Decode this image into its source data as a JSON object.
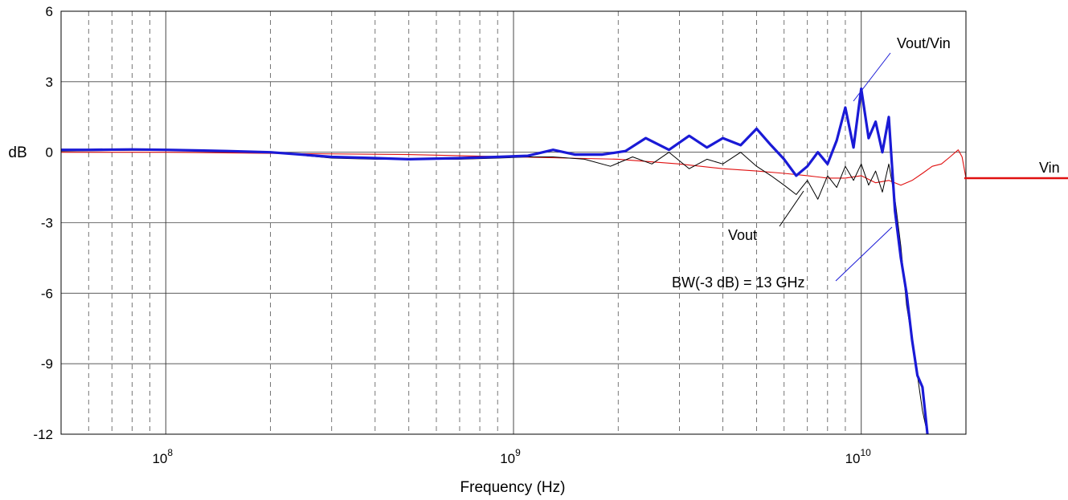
{
  "chart_data": {
    "type": "line",
    "title": "",
    "xlabel": "Frequency (Hz)",
    "ylabel": "dB",
    "xscale": "log",
    "xlim": [
      50000000,
      20000000000
    ],
    "ylim": [
      -12,
      6
    ],
    "grid": true,
    "yticks": [
      6,
      3,
      0,
      -3,
      -6,
      -9,
      -12
    ],
    "ytick_labels": [
      "6",
      "3",
      "0",
      "-3",
      "-6",
      "-9",
      "-12"
    ],
    "xticks": [
      {
        "value": 100000000,
        "base": "10",
        "exp": "8"
      },
      {
        "value": 1000000000,
        "base": "10",
        "exp": "9"
      },
      {
        "value": 10000000000,
        "base": "10",
        "exp": "10"
      }
    ],
    "annotations": {
      "vout_vin": "Vout/Vin",
      "vout": "Vout",
      "vin": "Vin",
      "bw": "BW(-3 dB) = 13 GHz"
    },
    "colors": {
      "vout_vin": "#1a1ad6",
      "vout": "#000000",
      "vin": "#e01010"
    },
    "series": [
      {
        "name": "Vout/Vin",
        "x": [
          50000000.0,
          60000000.0,
          80000000.0,
          100000000.0,
          150000000.0,
          200000000.0,
          300000000.0,
          400000000.0,
          500000000.0,
          700000000.0,
          900000000.0,
          1100000000.0,
          1300000000.0,
          1500000000.0,
          1800000000.0,
          2100000000.0,
          2400000000.0,
          2800000000.0,
          3200000000.0,
          3600000000.0,
          4000000000.0,
          4500000000.0,
          5000000000.0,
          5500000000.0,
          6000000000.0,
          6500000000.0,
          7000000000.0,
          7500000000.0,
          8000000000.0,
          8500000000.0,
          9000000000.0,
          9500000000.0,
          10000000000.0,
          10500000000.0,
          11000000000.0,
          11500000000.0,
          12000000000.0,
          12500000000.0,
          13000000000.0,
          13500000000.0,
          14000000000.0,
          14500000000.0,
          15000000000.0,
          15500000000.0
        ],
        "y": [
          0.1,
          0.1,
          0.12,
          0.1,
          0.05,
          0.0,
          -0.2,
          -0.25,
          -0.3,
          -0.25,
          -0.2,
          -0.15,
          0.1,
          -0.1,
          -0.1,
          0.05,
          0.6,
          0.1,
          0.7,
          0.2,
          0.6,
          0.3,
          1.0,
          0.3,
          -0.3,
          -1.0,
          -0.6,
          0.0,
          -0.5,
          0.5,
          1.9,
          0.2,
          2.7,
          0.6,
          1.3,
          0.0,
          1.5,
          -2.5,
          -4.5,
          -6.0,
          -8.0,
          -9.5,
          -10.0,
          -12.0
        ]
      },
      {
        "name": "Vout",
        "x": [
          50000000.0,
          80000000.0,
          100000000.0,
          150000000.0,
          200000000.0,
          300000000.0,
          400000000.0,
          500000000.0,
          700000000.0,
          900000000.0,
          1100000000.0,
          1300000000.0,
          1600000000.0,
          1900000000.0,
          2200000000.0,
          2500000000.0,
          2800000000.0,
          3200000000.0,
          3600000000.0,
          4000000000.0,
          4500000000.0,
          5000000000.0,
          5500000000.0,
          6000000000.0,
          6500000000.0,
          7000000000.0,
          7500000000.0,
          8000000000.0,
          8500000000.0,
          9000000000.0,
          9500000000.0,
          10000000000.0,
          10500000000.0,
          11000000000.0,
          11500000000.0,
          12000000000.0,
          12500000000.0,
          13000000000.0,
          13500000000.0,
          14000000000.0,
          14500000000.0,
          15000000000.0,
          15500000000.0
        ],
        "y": [
          0.05,
          0.08,
          0.08,
          0.03,
          0.0,
          -0.25,
          -0.3,
          -0.3,
          -0.3,
          -0.25,
          -0.2,
          -0.2,
          -0.3,
          -0.6,
          -0.2,
          -0.5,
          0.0,
          -0.7,
          -0.3,
          -0.5,
          0.0,
          -0.6,
          -1.0,
          -1.4,
          -1.8,
          -1.2,
          -2.0,
          -1.0,
          -1.5,
          -0.6,
          -1.2,
          -0.5,
          -1.4,
          -0.8,
          -1.7,
          -0.5,
          -2.0,
          -4.0,
          -6.5,
          -8.0,
          -9.5,
          -11.0,
          -12.0
        ]
      },
      {
        "name": "Vin",
        "x": [
          50000000.0,
          100000000.0,
          200000000.0,
          500000000.0,
          1000000000.0,
          2000000000.0,
          3000000000.0,
          4000000000.0,
          5000000000.0,
          6000000000.0,
          7000000000.0,
          8000000000.0,
          9000000000.0,
          10000000000.0,
          11000000000.0,
          12000000000.0,
          13000000000.0,
          14000000000.0,
          15000000000.0,
          16000000000.0,
          17000000000.0,
          18000000000.0,
          19000000000.0,
          19500000000.0,
          20000000000.0
        ],
        "y": [
          0.0,
          0.0,
          -0.05,
          -0.1,
          -0.2,
          -0.3,
          -0.5,
          -0.7,
          -0.8,
          -0.9,
          -1.0,
          -1.1,
          -1.1,
          -1.0,
          -1.3,
          -1.2,
          -1.4,
          -1.2,
          -0.9,
          -0.6,
          -0.5,
          -0.2,
          0.1,
          -0.2,
          -1.1
        ]
      }
    ]
  }
}
